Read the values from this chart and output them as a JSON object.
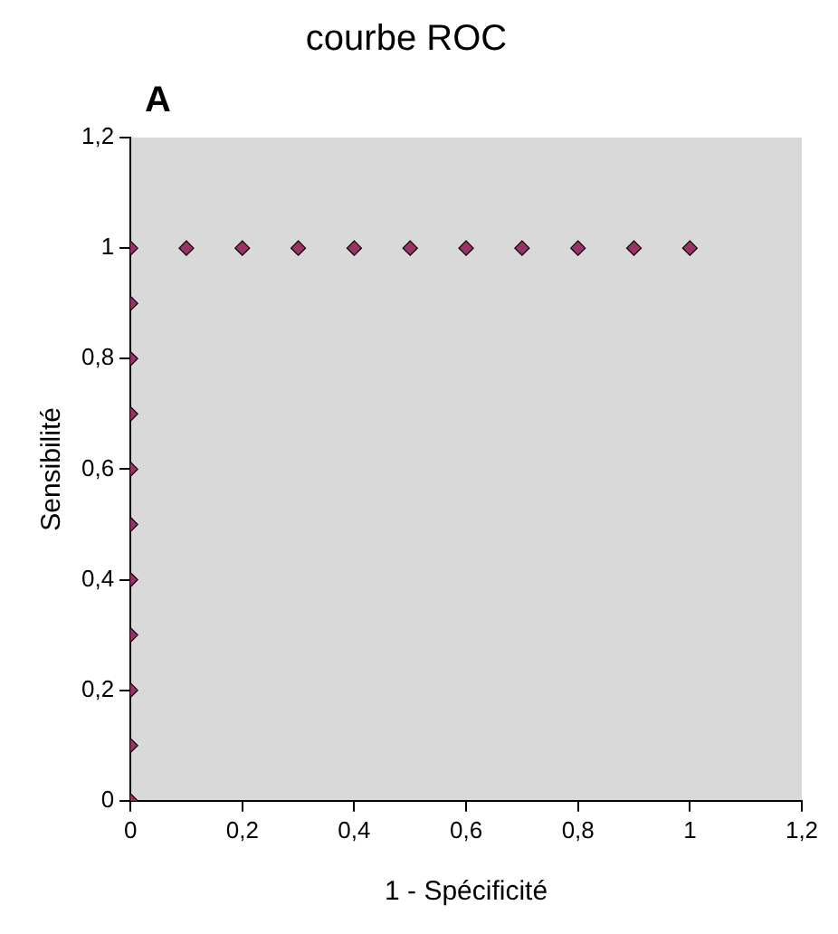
{
  "chart_data": {
    "type": "scatter",
    "title": "courbe ROC",
    "xlabel": "1 - Spécificité",
    "ylabel": "Sensibilité",
    "annotations": [
      "A"
    ],
    "x": [
      0,
      0,
      0,
      0,
      0,
      0,
      0,
      0,
      0,
      0,
      0,
      0.1,
      0.2,
      0.3,
      0.4,
      0.5,
      0.6,
      0.7,
      0.8,
      0.9,
      1
    ],
    "series": [
      {
        "color": "#993366",
        "values": [
          0,
          0.1,
          0.2,
          0.3,
          0.4,
          0.5,
          0.6,
          0.7,
          0.8,
          0.9,
          1,
          1,
          1,
          1,
          1,
          1,
          1,
          1,
          1,
          1,
          1
        ]
      }
    ],
    "xlim": [
      0,
      1.2
    ],
    "ylim": [
      0,
      1.2
    ],
    "xticks": [
      0,
      {
        "value": 0.2,
        "label": "0,2"
      },
      {
        "value": 0.4,
        "label": "0,4"
      },
      {
        "value": 0.6,
        "label": "0,6"
      },
      {
        "value": 0.8,
        "label": "0,8"
      },
      1,
      {
        "value": 1.2,
        "label": "1,2"
      }
    ],
    "yticks": [
      0,
      {
        "value": 0.2,
        "label": "0,2"
      },
      {
        "value": 0.4,
        "label": "0,4"
      },
      {
        "value": 0.6,
        "label": "0,6"
      },
      {
        "value": 0.8,
        "label": "0,8"
      },
      1,
      {
        "value": 1.2,
        "label": "1,2"
      }
    ],
    "grid": false,
    "legend": false,
    "marker": "diamond"
  }
}
